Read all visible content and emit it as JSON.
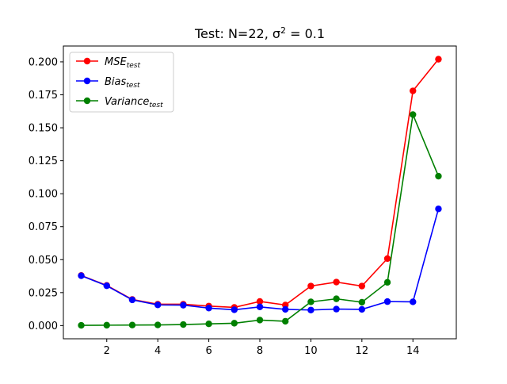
{
  "chart_data": {
    "type": "line",
    "title": "Test: N=22, σ² = 0.1",
    "xlabel": "",
    "ylabel": "",
    "xlim": [
      0.3,
      15.7
    ],
    "ylim": [
      -0.01,
      0.212
    ],
    "x": [
      1,
      2,
      3,
      4,
      5,
      6,
      7,
      8,
      9,
      10,
      11,
      12,
      13,
      14,
      15
    ],
    "xticks": [
      2,
      4,
      6,
      8,
      10,
      12,
      14
    ],
    "yticks": [
      0.0,
      0.025,
      0.05,
      0.075,
      0.1,
      0.125,
      0.15,
      0.175,
      0.2
    ],
    "ytick_labels": [
      "0.000",
      "0.025",
      "0.050",
      "0.075",
      "0.100",
      "0.125",
      "0.150",
      "0.175",
      "0.200"
    ],
    "grid": false,
    "legend_position": "upper-left",
    "series": [
      {
        "name": "MSE",
        "subscript": "test",
        "color": "#ff0000",
        "values": [
          0.038,
          0.0305,
          0.0198,
          0.0162,
          0.0162,
          0.0148,
          0.0138,
          0.0183,
          0.0156,
          0.03,
          0.033,
          0.03,
          0.0508,
          0.178,
          0.202
        ]
      },
      {
        "name": "Bias",
        "subscript": "test",
        "color": "#0000ff",
        "values": [
          0.0378,
          0.0302,
          0.0195,
          0.0157,
          0.0155,
          0.0133,
          0.012,
          0.0142,
          0.0123,
          0.0118,
          0.0125,
          0.0123,
          0.0182,
          0.018,
          0.0885
        ]
      },
      {
        "name": "Variance",
        "subscript": "test",
        "color": "#008000",
        "values": [
          0.0002,
          0.0003,
          0.0004,
          0.0005,
          0.0008,
          0.0013,
          0.0018,
          0.0042,
          0.0033,
          0.018,
          0.0203,
          0.0177,
          0.0328,
          0.16,
          0.1133
        ]
      }
    ]
  }
}
